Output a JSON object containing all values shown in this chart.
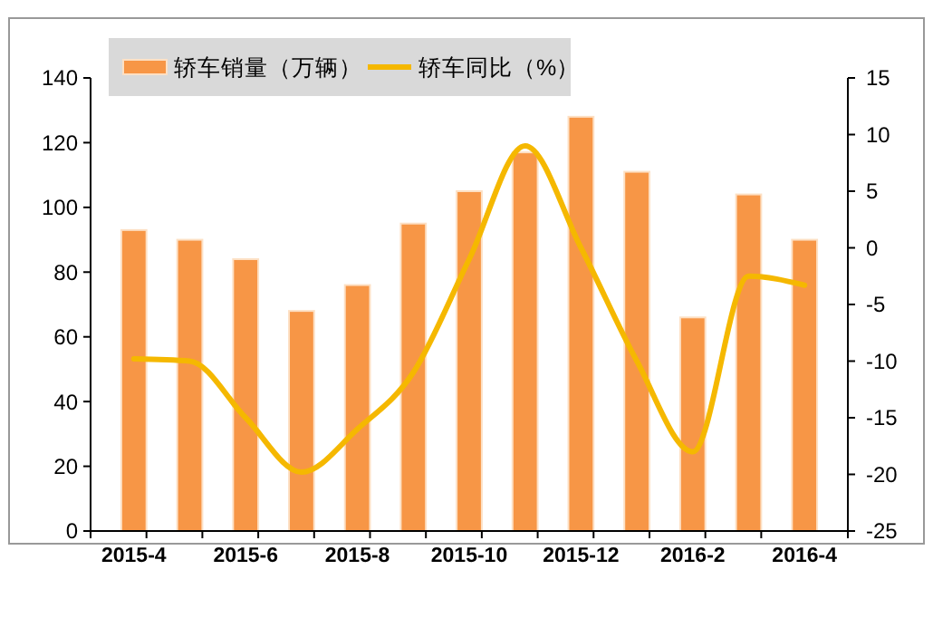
{
  "chart_data": {
    "type": "bar",
    "categories": [
      "2015-4",
      null,
      "2015-6",
      null,
      "2015-8",
      null,
      "2015-10",
      null,
      "2015-12",
      null,
      "2016-2",
      null,
      "2016-4"
    ],
    "series": [
      {
        "name": "轿车销量（万辆）",
        "color": "#f79646",
        "values": [
          93,
          90,
          84,
          68,
          76,
          95,
          105,
          117,
          128,
          111,
          66,
          104,
          90
        ]
      },
      {
        "name": "轿车同比（%）",
        "type": "line",
        "axis": "y2",
        "color": "#f5b800",
        "values": [
          -9.8,
          -10,
          -15,
          -19.8,
          -16,
          -11,
          -1,
          9,
          0,
          -10,
          -18,
          -2.5,
          -3.3
        ]
      }
    ],
    "ylim": [
      0,
      140
    ],
    "yticks": [
      0,
      20,
      40,
      60,
      80,
      100,
      120,
      140
    ],
    "y2lim": [
      -25,
      15
    ],
    "y2ticks": [
      -25,
      -20,
      -15,
      -10,
      -5,
      0,
      5,
      10,
      15
    ],
    "legend": "top left",
    "grid": false,
    "marker": "none",
    "line_style": "solid"
  }
}
